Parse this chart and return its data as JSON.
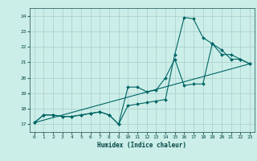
{
  "xlabel": "Humidex (Indice chaleur)",
  "bg_color": "#cceee8",
  "grid_color": "#aacccc",
  "line_color": "#006666",
  "xlim": [
    -0.5,
    23.5
  ],
  "ylim": [
    16.5,
    24.5
  ],
  "xticks": [
    0,
    1,
    2,
    3,
    4,
    5,
    6,
    7,
    8,
    9,
    10,
    11,
    12,
    13,
    14,
    15,
    16,
    17,
    18,
    19,
    20,
    21,
    22,
    23
  ],
  "yticks": [
    17,
    18,
    19,
    20,
    21,
    22,
    23,
    24
  ],
  "line1_x": [
    0,
    1,
    2,
    3,
    4,
    5,
    6,
    7,
    8,
    9,
    10,
    11,
    12,
    13,
    14,
    15,
    16,
    17,
    18,
    19,
    20,
    21,
    22,
    23
  ],
  "line1_y": [
    17.1,
    17.6,
    17.6,
    17.5,
    17.5,
    17.6,
    17.7,
    17.8,
    17.6,
    17.0,
    19.4,
    19.4,
    19.1,
    19.2,
    20.0,
    21.2,
    19.5,
    19.6,
    19.6,
    22.2,
    21.8,
    21.2,
    21.2,
    20.9
  ],
  "line2_x": [
    0,
    1,
    2,
    3,
    4,
    5,
    6,
    7,
    8,
    9,
    10,
    11,
    12,
    13,
    14,
    15,
    16,
    17,
    18,
    19,
    20,
    21,
    22,
    23
  ],
  "line2_y": [
    17.1,
    17.6,
    17.6,
    17.5,
    17.5,
    17.6,
    17.7,
    17.8,
    17.6,
    17.0,
    18.2,
    18.3,
    18.4,
    18.5,
    18.6,
    21.5,
    23.9,
    23.8,
    22.6,
    22.2,
    21.5,
    21.5,
    21.2,
    20.9
  ],
  "line3_x": [
    0,
    23
  ],
  "line3_y": [
    17.1,
    20.9
  ]
}
